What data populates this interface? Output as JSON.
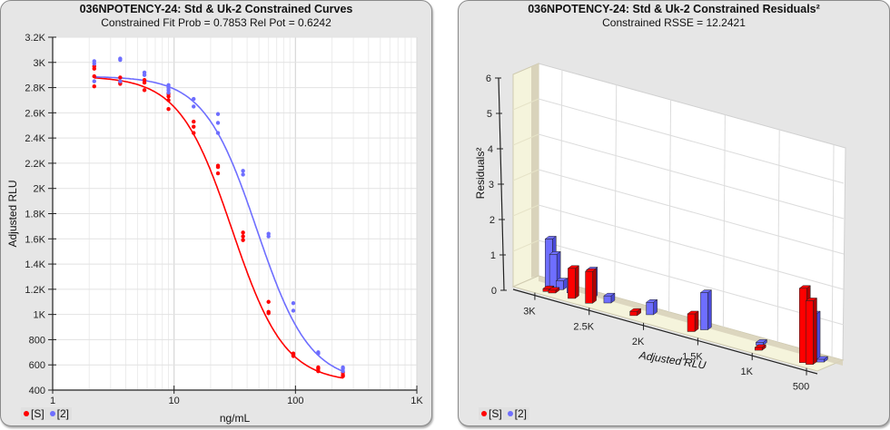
{
  "left_panel": {
    "title": "036NPOTENCY-24: Std & Uk-2  Constrained Curves",
    "subtitle": "Constrained Fit Prob = 0.7853  Rel Pot = 0.6242",
    "xlabel": "ng/mL",
    "ylabel": "Adjusted RLU",
    "x_ticks": [
      "1",
      "10",
      "100",
      "1K"
    ],
    "y_ticks": [
      "400",
      "600",
      "800",
      "1K",
      "1.2K",
      "1.4K",
      "1.6K",
      "1.8K",
      "2K",
      "2.2K",
      "2.4K",
      "2.6K",
      "2.8K",
      "3K",
      "3.2K"
    ],
    "legend": [
      {
        "label": "[S]",
        "color": "#ff0000"
      },
      {
        "label": "[2]",
        "color": "#6e6eff"
      }
    ]
  },
  "right_panel": {
    "title": "036NPOTENCY-24: Std & Uk-2  Constrained Residuals²",
    "subtitle": "Constrained RSSE = 12.2421",
    "xlabel": "Adjusted RLU",
    "ylabel": "Residuals²",
    "x_ticks": [
      "3K",
      "2.5K",
      "2K",
      "1.5K",
      "1K",
      "500"
    ],
    "y_ticks": [
      "0",
      "1",
      "2",
      "3",
      "4",
      "5",
      "6"
    ],
    "legend": [
      {
        "label": "[S]",
        "color": "#ff0000"
      },
      {
        "label": "[2]",
        "color": "#6e6eff"
      }
    ]
  },
  "chart_data": [
    {
      "type": "scatter",
      "title": "036NPOTENCY-24: Std & Uk-2  Constrained Curves",
      "subtitle": "Constrained Fit Prob = 0.7853  Rel Pot = 0.6242",
      "xlabel": "ng/mL",
      "ylabel": "Adjusted RLU",
      "xscale": "log",
      "xlim": [
        1,
        1000
      ],
      "ylim": [
        400,
        3200
      ],
      "grid": true,
      "legend_position": "bottom-left",
      "series": [
        {
          "name": "[S]",
          "color": "#ff0000",
          "points": [
            [
              2.2,
              2970
            ],
            [
              2.2,
              2950
            ],
            [
              2.2,
              2890
            ],
            [
              2.2,
              2810
            ],
            [
              3.6,
              2880
            ],
            [
              3.6,
              2840
            ],
            [
              3.6,
              2830
            ],
            [
              5.7,
              2860
            ],
            [
              5.7,
              2840
            ],
            [
              5.7,
              2780
            ],
            [
              9.0,
              2750
            ],
            [
              9.0,
              2730
            ],
            [
              9.0,
              2700
            ],
            [
              9.0,
              2630
            ],
            [
              14.5,
              2530
            ],
            [
              14.5,
              2490
            ],
            [
              14.5,
              2440
            ],
            [
              23,
              2180
            ],
            [
              23,
              2170
            ],
            [
              23,
              2120
            ],
            [
              37,
              1650
            ],
            [
              37,
              1620
            ],
            [
              37,
              1590
            ],
            [
              60,
              1100
            ],
            [
              60,
              1020
            ],
            [
              60,
              1010
            ],
            [
              96,
              690
            ],
            [
              96,
              680
            ],
            [
              96,
              670
            ],
            [
              154,
              580
            ],
            [
              154,
              570
            ],
            [
              154,
              550
            ],
            [
              246,
              540
            ],
            [
              246,
              520
            ],
            [
              246,
              510
            ]
          ],
          "fit_curve": {
            "top": 2890,
            "bottom": 460,
            "ec50": 30,
            "slope": 2.0
          }
        },
        {
          "name": "[2]",
          "color": "#6e6eff",
          "points": [
            [
              2.2,
              3010
            ],
            [
              2.2,
              2990
            ],
            [
              2.2,
              2850
            ],
            [
              3.6,
              3030
            ],
            [
              3.6,
              3020
            ],
            [
              3.6,
              2850
            ],
            [
              5.7,
              2920
            ],
            [
              5.7,
              2900
            ],
            [
              9.0,
              2820
            ],
            [
              9.0,
              2800
            ],
            [
              9.0,
              2780
            ],
            [
              9.0,
              2760
            ],
            [
              14.5,
              2710
            ],
            [
              14.5,
              2650
            ],
            [
              23,
              2590
            ],
            [
              23,
              2520
            ],
            [
              23,
              2440
            ],
            [
              37,
              2140
            ],
            [
              37,
              2110
            ],
            [
              60,
              1640
            ],
            [
              60,
              1620
            ],
            [
              96,
              1090
            ],
            [
              96,
              1030
            ],
            [
              154,
              700
            ],
            [
              154,
              690
            ],
            [
              246,
              580
            ],
            [
              246,
              570
            ],
            [
              246,
              550
            ]
          ],
          "fit_curve": {
            "top": 2890,
            "bottom": 460,
            "ec50": 48.06,
            "slope": 2.0
          }
        }
      ]
    },
    {
      "type": "bar",
      "subtype": "3d",
      "title": "036NPOTENCY-24: Std & Uk-2  Constrained Residuals²",
      "subtitle": "Constrained RSSE = 12.2421",
      "xlabel": "Adjusted RLU",
      "ylabel": "Residuals²",
      "xlim": [
        3200,
        400
      ],
      "ylim": [
        0,
        6
      ],
      "grid": true,
      "legend_position": "bottom-left",
      "series": [
        {
          "name": "[S]",
          "color": "#ff0000",
          "bars": [
            [
              2950,
              0.03
            ],
            [
              2900,
              0.02
            ],
            [
              2720,
              0.85
            ],
            [
              2560,
              0.9
            ],
            [
              2150,
              0.12
            ],
            [
              1620,
              0.5
            ],
            [
              1000,
              0.05
            ],
            [
              590,
              2.1
            ],
            [
              530,
              1.8
            ]
          ]
        },
        {
          "name": "[2]",
          "color": "#6e6eff",
          "bars": [
            [
              3000,
              1.35
            ],
            [
              2960,
              0.95
            ],
            [
              2900,
              0.25
            ],
            [
              2800,
              0.4
            ],
            [
              2620,
              0.8
            ],
            [
              2460,
              0.2
            ],
            [
              2070,
              0.35
            ],
            [
              1570,
              1.05
            ],
            [
              1060,
              0.08
            ],
            [
              570,
              1.3
            ],
            [
              500,
              0.07
            ]
          ]
        }
      ]
    }
  ]
}
